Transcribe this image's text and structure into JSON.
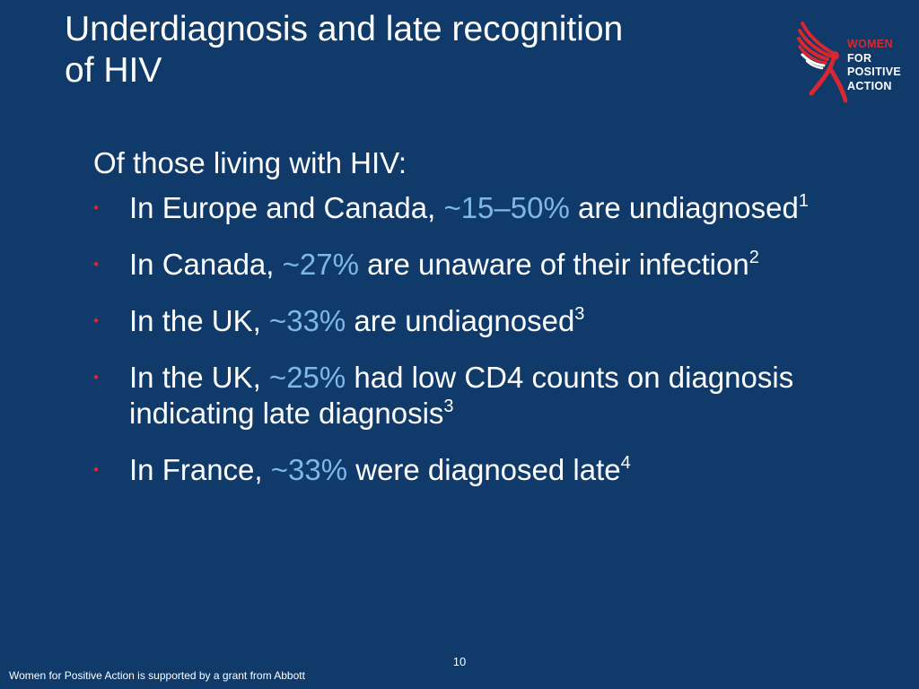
{
  "slide": {
    "title_line1": "Underdiagnosis and late recognition",
    "title_line2": "of HIV",
    "logo": {
      "line1": "WOMEN",
      "line2": "FOR",
      "line3": "POSITIVE",
      "line4": "ACTION",
      "icon": "wings-figure-icon"
    },
    "lead": "Of those living with HIV:",
    "bullet_marker": "•",
    "bullets": [
      {
        "before": "In Europe and Canada, ",
        "highlight": "~15–50%",
        "after": " are undiagnosed",
        "ref": "1"
      },
      {
        "before": "In Canada, ",
        "highlight": "~27%",
        "after": " are unaware of their infection",
        "ref": "2"
      },
      {
        "before": "In the UK, ",
        "highlight": "~33%",
        "after": " are undiagnosed",
        "ref": "3"
      },
      {
        "before": "In the UK, ",
        "highlight": "~25%",
        "after": " had low CD4 counts on diagnosis indicating late diagnosis",
        "ref": "3"
      },
      {
        "before": "In France, ",
        "highlight": "~33%",
        "after": " were diagnosed late",
        "ref": "4"
      }
    ],
    "page_number": "10",
    "footer": "Women for Positive Action is supported by a grant from Abbott",
    "colors": {
      "background": "#0f3a6a",
      "text": "#ffffff",
      "highlight": "#7db8e8",
      "accent_red": "#d8282f"
    }
  }
}
